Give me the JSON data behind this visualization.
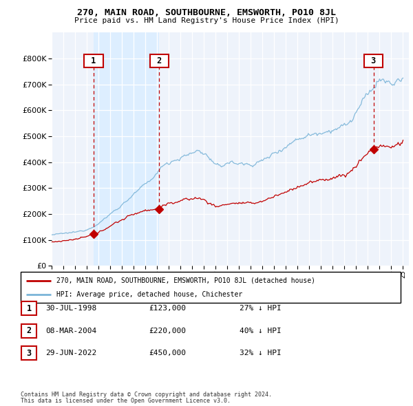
{
  "title": "270, MAIN ROAD, SOUTHBOURNE, EMSWORTH, PO10 8JL",
  "subtitle": "Price paid vs. HM Land Registry's House Price Index (HPI)",
  "legend_line1": "270, MAIN ROAD, SOUTHBOURNE, EMSWORTH, PO10 8JL (detached house)",
  "legend_line2": "HPI: Average price, detached house, Chichester",
  "footnote1": "Contains HM Land Registry data © Crown copyright and database right 2024.",
  "footnote2": "This data is licensed under the Open Government Licence v3.0.",
  "transactions": [
    {
      "num": 1,
      "date": "30-JUL-1998",
      "price": 123000,
      "note": "27% ↓ HPI",
      "x_year": 1998.58
    },
    {
      "num": 2,
      "date": "08-MAR-2004",
      "price": 220000,
      "note": "40% ↓ HPI",
      "x_year": 2004.18
    },
    {
      "num": 3,
      "date": "29-JUN-2022",
      "price": 450000,
      "note": "32% ↓ HPI",
      "x_year": 2022.49
    }
  ],
  "hpi_color": "#7ab4d8",
  "price_color": "#c00000",
  "marker_border_color": "#c00000",
  "shade_color": "#ddeeff",
  "ylim": [
    0,
    900000
  ],
  "yticks": [
    0,
    100000,
    200000,
    300000,
    400000,
    500000,
    600000,
    700000,
    800000
  ],
  "xlim_start": 1995.0,
  "xlim_end": 2025.5,
  "background_color": "#ffffff",
  "plot_bg_color": "#eef3fb"
}
